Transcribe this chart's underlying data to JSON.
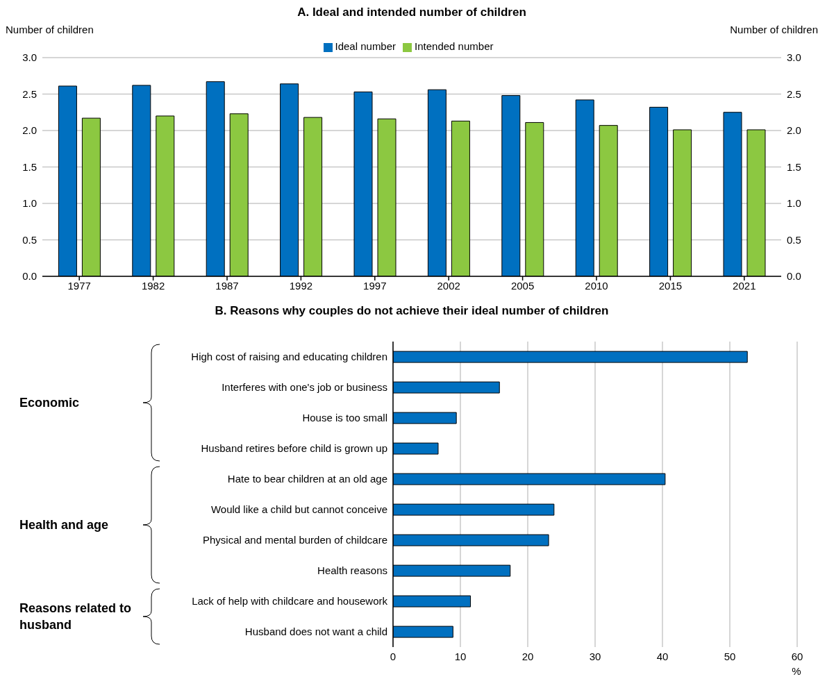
{
  "chart_data": [
    {
      "type": "bar",
      "title": "A. Ideal and intended number of children",
      "ylabel": "Number of children",
      "y2label": "Number of children",
      "categories": [
        "1977",
        "1982",
        "1987",
        "1992",
        "1997",
        "2002",
        "2005",
        "2010",
        "2015",
        "2021"
      ],
      "series": [
        {
          "name": "Ideal number",
          "color": "#0070c0",
          "values": [
            2.61,
            2.62,
            2.67,
            2.64,
            2.53,
            2.56,
            2.48,
            2.42,
            2.32,
            2.25
          ]
        },
        {
          "name": "Intended number",
          "color": "#8cc841",
          "values": [
            2.17,
            2.2,
            2.23,
            2.18,
            2.16,
            2.13,
            2.11,
            2.07,
            2.01,
            2.01
          ]
        }
      ],
      "ylim": [
        0,
        3
      ],
      "yticks": [
        {
          "value": 0,
          "label": "0.0"
        },
        {
          "value": 0.5,
          "label": "0.5"
        },
        {
          "value": 1,
          "label": "1.0"
        },
        {
          "value": 1.5,
          "label": "1.5"
        },
        {
          "value": 2,
          "label": "2.0"
        },
        {
          "value": 2.5,
          "label": "2.5"
        },
        {
          "value": 3,
          "label": "3.0"
        }
      ],
      "y2lim": [
        0,
        3
      ],
      "y2ticks": [
        {
          "value": 0,
          "label": "0.0"
        },
        {
          "value": 0.5,
          "label": "0.5"
        },
        {
          "value": 1,
          "label": "1.0"
        },
        {
          "value": 1.5,
          "label": "1.5"
        },
        {
          "value": 2,
          "label": "2.0"
        },
        {
          "value": 2.5,
          "label": "2.5"
        },
        {
          "value": 3,
          "label": "3.0"
        }
      ],
      "grid": "y",
      "legend": "top"
    },
    {
      "type": "bar",
      "orientation": "horizontal",
      "title": "B. Reasons why couples do not achieve their ideal number of children",
      "xlabel": "%",
      "categories": [
        "High cost of raising and educating children",
        "Interferes with one's job or business",
        "House is too small",
        "Husband retires before child is grown up",
        "Hate to bear children at an old age",
        "Would like a child but cannot conceive",
        "Physical and mental burden of childcare",
        "Health reasons",
        "Lack of help with childcare and housework",
        "Husband does not want a child"
      ],
      "values": [
        52.6,
        15.8,
        9.4,
        6.7,
        40.4,
        23.9,
        23.1,
        17.4,
        11.5,
        8.9
      ],
      "color": "#0070c0",
      "xlim": [
        0,
        60
      ],
      "xticks": [
        0,
        10,
        20,
        30,
        40,
        50,
        60
      ],
      "grid": "x",
      "annotations": [
        "Economic",
        "Health and age",
        "Reasons related to husband"
      ]
    }
  ]
}
